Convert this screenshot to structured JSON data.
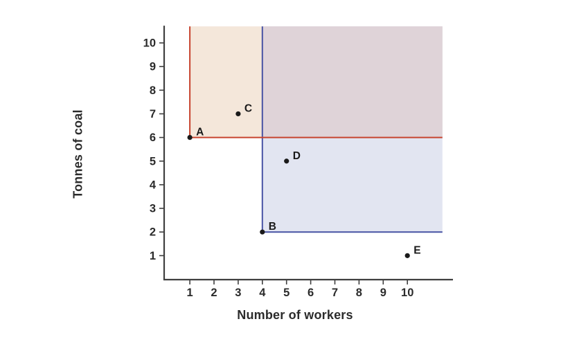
{
  "chart_data": {
    "type": "scatter",
    "title": "",
    "xlabel": "Number of workers",
    "ylabel": "Tonnes of coal",
    "x_ticks": [
      1,
      2,
      3,
      4,
      5,
      6,
      7,
      8,
      9,
      10
    ],
    "y_ticks": [
      1,
      2,
      3,
      4,
      5,
      6,
      7,
      8,
      9,
      10
    ],
    "xlim": [
      0,
      11.45
    ],
    "ylim": [
      0,
      10.7
    ],
    "grid": false,
    "legend": "none",
    "points": [
      {
        "label": "A",
        "x": 1,
        "y": 6
      },
      {
        "label": "B",
        "x": 4,
        "y": 2
      },
      {
        "label": "C",
        "x": 3,
        "y": 7
      },
      {
        "label": "D",
        "x": 5,
        "y": 5
      },
      {
        "label": "E",
        "x": 10,
        "y": 1
      }
    ],
    "regions": [
      {
        "name": "region-above-A",
        "anchor_point": "A",
        "x": 1,
        "y": 6,
        "line_color": "#c7432e",
        "fill_color": "#f4e7da"
      },
      {
        "name": "region-above-B",
        "anchor_point": "B",
        "x": 4,
        "y": 2,
        "line_color": "#4753a4",
        "fill_color": "#e2e5f1"
      }
    ],
    "overlap_fill_color": "#dfd3d8",
    "point_color": "#1a1a1a",
    "axis_color": "#3f3f3f",
    "tick_text_color": "#2b2b2b",
    "point_label_color": "#1a1a1a"
  }
}
